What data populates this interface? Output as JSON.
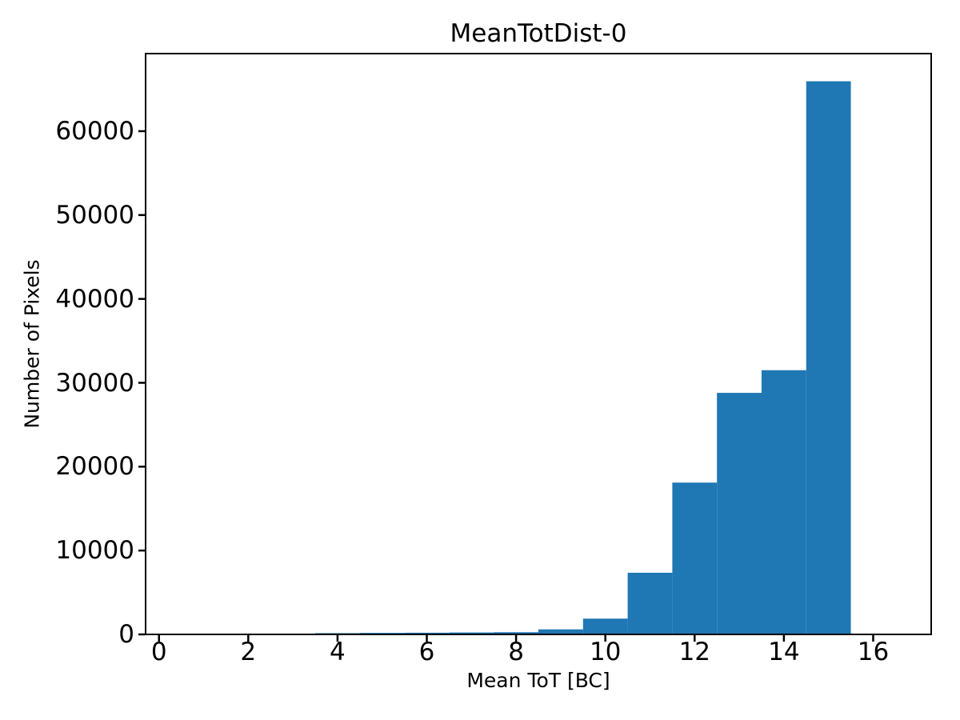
{
  "figure": {
    "background": "#ffffff"
  },
  "chart_data": {
    "type": "bar",
    "subtype": "histogram",
    "title": "MeanTotDist-0",
    "xlabel": "Mean ToT [BC]",
    "ylabel": "Number of Pixels",
    "bar_color": "#1f77b4",
    "axis_color": "#000000",
    "grid": false,
    "legend": false,
    "xlim": [
      -0.3,
      17.3
    ],
    "ylim": [
      0,
      69250
    ],
    "xticks": [
      0,
      2,
      4,
      6,
      8,
      10,
      12,
      14,
      16
    ],
    "yticks": [
      0,
      10000,
      20000,
      30000,
      40000,
      50000,
      60000
    ],
    "bin_width": 1.0,
    "bins": [
      {
        "left": 3.5,
        "count": 150
      },
      {
        "left": 4.5,
        "count": 180
      },
      {
        "left": 5.5,
        "count": 200
      },
      {
        "left": 6.5,
        "count": 230
      },
      {
        "left": 7.5,
        "count": 260
      },
      {
        "left": 8.5,
        "count": 600
      },
      {
        "left": 9.5,
        "count": 1880
      },
      {
        "left": 10.5,
        "count": 7350
      },
      {
        "left": 11.5,
        "count": 18100
      },
      {
        "left": 12.5,
        "count": 28800
      },
      {
        "left": 13.5,
        "count": 31500
      },
      {
        "left": 14.5,
        "count": 65950
      }
    ]
  }
}
